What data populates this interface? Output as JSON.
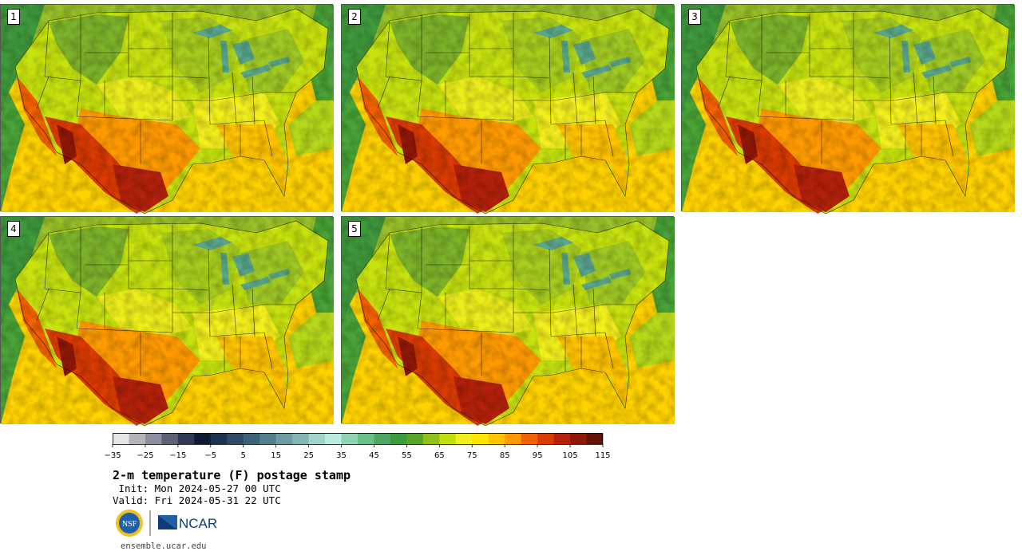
{
  "panels": [
    {
      "label": "1"
    },
    {
      "label": "2"
    },
    {
      "label": "3"
    },
    {
      "label": "4"
    },
    {
      "label": "5"
    }
  ],
  "colorbar": {
    "colors": [
      "#e6e6e6",
      "#b3b3b8",
      "#8c8f9e",
      "#5c6276",
      "#2f3a55",
      "#0e1c33",
      "#1d3350",
      "#2e4a66",
      "#3e6278",
      "#537f8c",
      "#6d9da3",
      "#84b5b5",
      "#9dd4cc",
      "#b9ede0",
      "#8fd4b0",
      "#68bf88",
      "#4fa862",
      "#3d9a3e",
      "#5aa42a",
      "#8fc11c",
      "#c3de10",
      "#f1f01f",
      "#ffe400",
      "#ffc400",
      "#ff9b00",
      "#f26200",
      "#d93b00",
      "#b3210a",
      "#8f1808",
      "#641206"
    ],
    "ticks": [
      "−35",
      "−25",
      "−15",
      "−5",
      "5",
      "15",
      "25",
      "35",
      "45",
      "55",
      "65",
      "75",
      "85",
      "95",
      "105",
      "115"
    ]
  },
  "title": "2-m temperature (F) postage stamp",
  "init": " Init: Mon 2024-05-27 00 UTC",
  "valid": "Valid: Fri 2024-05-31 22 UTC",
  "logos": {
    "nsf": "NSF",
    "ncar": "NCAR"
  },
  "url": "ensemble.ucar.edu"
}
